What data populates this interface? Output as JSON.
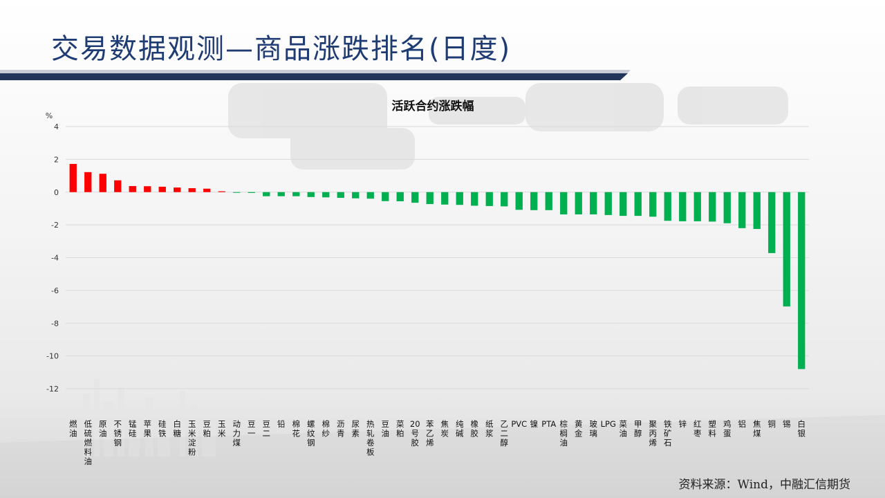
{
  "slide": {
    "title": "交易数据观测—商品涨跌排名(日度)",
    "source": "资料来源：Wind，中融汇信期货"
  },
  "colors": {
    "title": "#1f3b73",
    "title_bar": "#22345a",
    "positive": "#ff0000",
    "negative": "#00b050",
    "grid": "#d9d9d9"
  },
  "chart_data": {
    "type": "bar",
    "title": "活跃合约涨跌幅",
    "ylabel": "%",
    "ylim": [
      -12,
      4
    ],
    "yticks": [
      4,
      2,
      0,
      -2,
      -4,
      -6,
      -8,
      -10,
      -12
    ],
    "grid": true,
    "categories": [
      "燃油",
      "低硫燃料油",
      "原油",
      "不锈钢",
      "锰硅",
      "苹果",
      "硅铁",
      "白糖",
      "玉米淀粉",
      "豆粕",
      "玉米",
      "动力煤",
      "豆一",
      "豆二",
      "铅",
      "棉花",
      "螺纹钢",
      "棉纱",
      "沥青",
      "尿素",
      "热轧卷板",
      "豆油",
      "菜粕",
      "20号胶",
      "苯乙烯",
      "焦炭",
      "纯碱",
      "橡胶",
      "纸浆",
      "乙二醇",
      "PVC",
      "镍",
      "PTA",
      "棕榈油",
      "黄金",
      "玻璃",
      "LPG",
      "菜油",
      "甲醇",
      "聚丙烯",
      "铁矿石",
      "锌",
      "红枣",
      "塑料",
      "鸡蛋",
      "铝",
      "焦煤",
      "铜",
      "锡",
      "白银"
    ],
    "values": [
      1.72,
      1.22,
      1.12,
      0.72,
      0.37,
      0.36,
      0.33,
      0.28,
      0.24,
      0.21,
      0.05,
      -0.02,
      -0.05,
      -0.25,
      -0.25,
      -0.25,
      -0.3,
      -0.32,
      -0.35,
      -0.38,
      -0.4,
      -0.55,
      -0.56,
      -0.65,
      -0.73,
      -0.76,
      -0.78,
      -0.83,
      -0.85,
      -0.87,
      -1.08,
      -1.1,
      -1.1,
      -1.36,
      -1.36,
      -1.36,
      -1.4,
      -1.45,
      -1.45,
      -1.5,
      -1.75,
      -1.78,
      -1.78,
      -1.8,
      -1.9,
      -2.2,
      -2.25,
      -3.72,
      -6.98,
      -10.8
    ]
  }
}
